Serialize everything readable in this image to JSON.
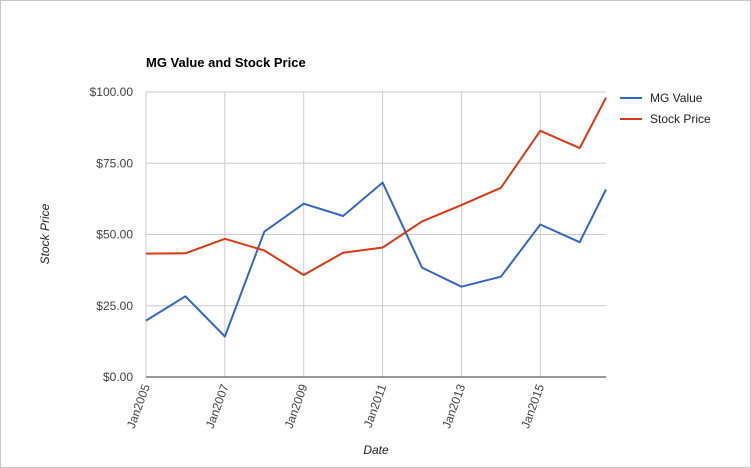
{
  "chart_data": {
    "type": "line",
    "title": "MG Value and Stock Price",
    "xlabel": "Date",
    "ylabel": "Stock Price",
    "x": [
      "2005-01",
      "2006-01",
      "2007-01",
      "2008-01",
      "2009-01",
      "2010-01",
      "2011-01",
      "2012-01",
      "2013-01",
      "2014-01",
      "2015-01",
      "2016-01",
      "2016-09"
    ],
    "x_ticks": [
      "Jan2005",
      "Jan2007",
      "Jan2009",
      "Jan2011",
      "Jan2013",
      "Jan2015"
    ],
    "y_ticks": [
      "$100.00",
      "$75.00",
      "$50.00",
      "$25.00",
      "$0.00"
    ],
    "ylim": [
      0,
      100
    ],
    "xlim": [
      "2005-01",
      "2016-09"
    ],
    "grid": true,
    "legend_position": "right",
    "series": [
      {
        "name": "MG Value",
        "color": "#3366cc",
        "values": [
          19.8,
          28.3,
          14.2,
          51.0,
          60.8,
          56.5,
          68.2,
          38.4,
          31.7,
          35.2,
          53.5,
          47.3,
          65.8
        ]
      },
      {
        "name": "Stock Price",
        "color": "#dc3912",
        "values": [
          43.3,
          43.4,
          48.5,
          44.4,
          35.8,
          43.6,
          45.4,
          54.6,
          60.3,
          66.4,
          86.4,
          80.3,
          98.0
        ]
      }
    ]
  }
}
